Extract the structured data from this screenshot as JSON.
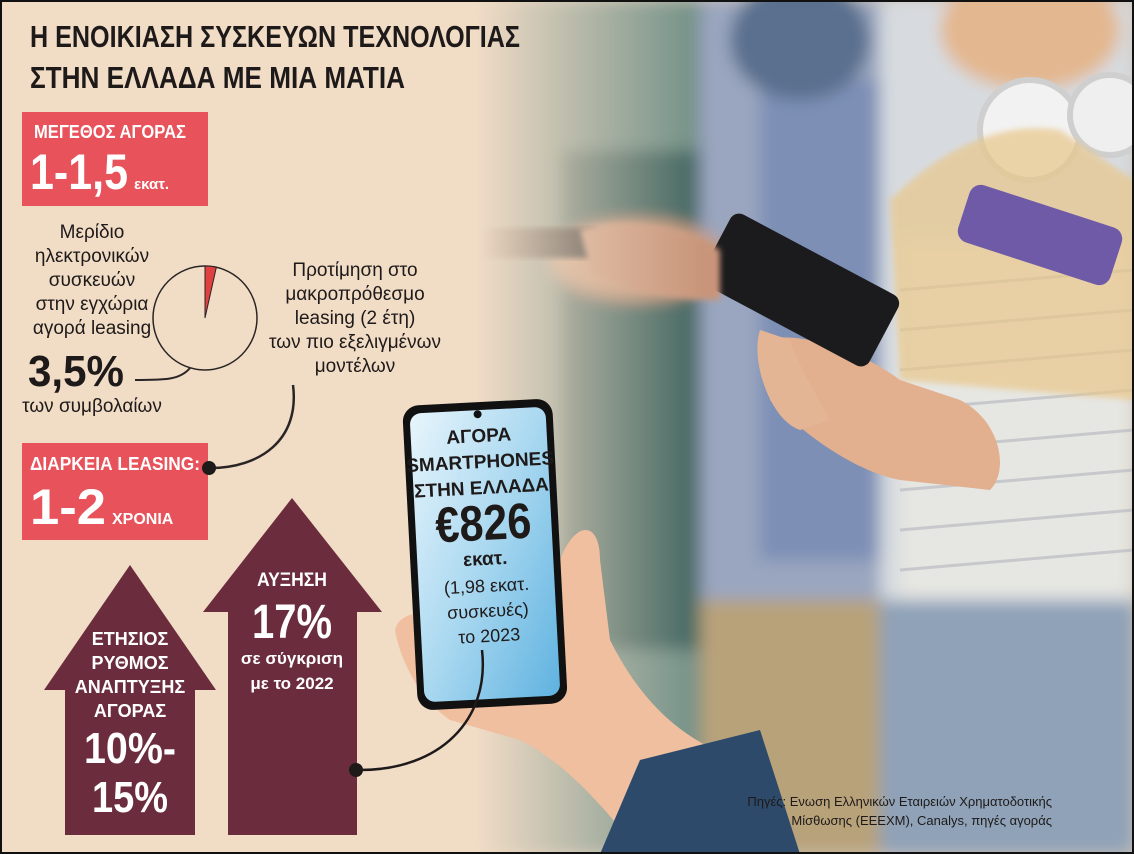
{
  "title": [
    "Η ΕΝΟΙΚΙΑΣΗ ΣΥΣΚΕΥΩΝ ΤΕΧΝΟΛΟΓΙΑΣ",
    "ΣΤΗΝ ΕΛΛΑΔΑ ΜΕ ΜΙΑ ΜΑΤΙΑ"
  ],
  "market_size": {
    "label": "ΜΕΓΕΘΟΣ ΑΓΟΡΑΣ",
    "value": "1-1,5",
    "unit": "εκατ."
  },
  "share": {
    "lines": [
      "Μερίδιο",
      "ηλεκτρονικών",
      "συσκευών",
      "στην εγχώρια",
      "αγορά leasing"
    ],
    "value": 3.5,
    "label": "3,5%",
    "note": "των συμβολαίων"
  },
  "preference": [
    "Προτίμηση στο",
    "μακροπρόθεσμο",
    "leasing (2 έτη)",
    "των πιο εξελιγμένων",
    "μοντέλων"
  ],
  "duration": {
    "label": "ΔΙΑΡΚΕΙΑ LEASING:",
    "value": "1-2",
    "unit": "ΧΡΟΝΙΑ"
  },
  "growth_rate": {
    "lines": [
      "ΕΤΗΣΙΟΣ",
      "ΡΥΘΜΟΣ",
      "ΑΝΑΠΤΥΞΗΣ",
      "ΑΓΟΡΑΣ"
    ],
    "value": [
      "10%-",
      "15%"
    ]
  },
  "increase": {
    "label": "ΑΥΞΗΣΗ",
    "value": "17%",
    "note": [
      "σε σύγκριση",
      "με το 2022"
    ]
  },
  "smartphones": {
    "lines": [
      "ΑΓΟΡΑ",
      "SMARTPHONES",
      "ΣΤΗΝ ΕΛΛΑΔΑ"
    ],
    "value": "€826",
    "unit": "εκατ.",
    "note": [
      "(1,98 εκατ.",
      "συσκευές)",
      "το 2023"
    ]
  },
  "sources": [
    "Πηγές: Ενωση Ελληνικών Εταιρειών Χρηματοδοτικής",
    "Μίσθωσης (ΕΕΕΧΜ), Canalys, πηγές αγοράς"
  ]
}
